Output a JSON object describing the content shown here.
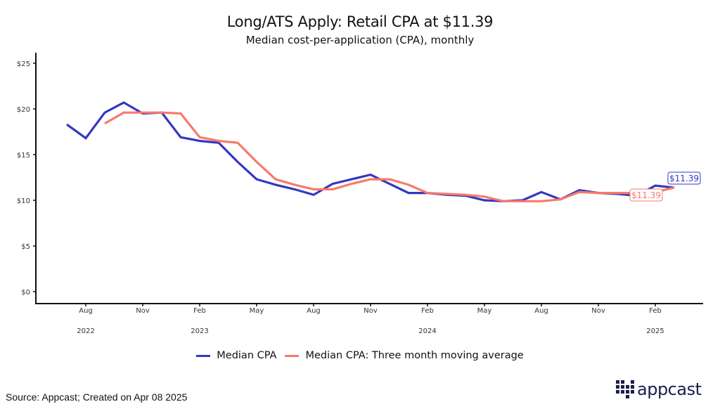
{
  "header": {
    "title": "Long/ATS Apply: Retail CPA at $11.39",
    "subtitle": "Median cost-per-application (CPA), monthly"
  },
  "footer": {
    "source": "Source: Appcast; Created on Apr 08 2025",
    "logo_text": "appcast"
  },
  "colors": {
    "median": "#3339c0",
    "moving_average": "#f77a6b",
    "axis": "#111111"
  },
  "chart_data": {
    "type": "line",
    "title": "Long/ATS Apply: Retail CPA at $11.39",
    "subtitle": "Median cost-per-application (CPA), monthly",
    "xlabel": "",
    "ylabel": "",
    "ylim": [
      0,
      25
    ],
    "y_ticks": [
      0,
      5,
      10,
      15,
      20,
      25
    ],
    "y_tick_labels": [
      "$0",
      "$5",
      "$10",
      "$15",
      "$20",
      "$25"
    ],
    "x": [
      "2022-07",
      "2022-08",
      "2022-09",
      "2022-10",
      "2022-11",
      "2022-12",
      "2023-01",
      "2023-02",
      "2023-03",
      "2023-04",
      "2023-05",
      "2023-06",
      "2023-07",
      "2023-08",
      "2023-09",
      "2023-10",
      "2023-11",
      "2023-12",
      "2024-01",
      "2024-02",
      "2024-03",
      "2024-04",
      "2024-05",
      "2024-06",
      "2024-07",
      "2024-08",
      "2024-09",
      "2024-10",
      "2024-11",
      "2024-12",
      "2025-01",
      "2025-02",
      "2025-03"
    ],
    "x_ticks": [
      {
        "index": 1,
        "label": "Aug",
        "year": "2022"
      },
      {
        "index": 4,
        "label": "Nov",
        "year": ""
      },
      {
        "index": 7,
        "label": "Feb",
        "year": "2023"
      },
      {
        "index": 10,
        "label": "May",
        "year": ""
      },
      {
        "index": 13,
        "label": "Aug",
        "year": ""
      },
      {
        "index": 16,
        "label": "Nov",
        "year": ""
      },
      {
        "index": 19,
        "label": "Feb",
        "year": "2024"
      },
      {
        "index": 22,
        "label": "May",
        "year": ""
      },
      {
        "index": 25,
        "label": "Aug",
        "year": ""
      },
      {
        "index": 28,
        "label": "Nov",
        "year": ""
      },
      {
        "index": 31,
        "label": "Feb",
        "year": "2025"
      }
    ],
    "series": [
      {
        "name": "Median CPA",
        "color": "#3339c0",
        "values": [
          18.3,
          16.8,
          19.6,
          20.7,
          19.5,
          19.6,
          16.9,
          16.5,
          16.3,
          14.2,
          12.3,
          11.7,
          11.2,
          10.6,
          11.8,
          12.3,
          12.8,
          11.8,
          10.8,
          10.8,
          10.6,
          10.5,
          10.0,
          9.9,
          10.0,
          10.9,
          10.1,
          11.1,
          10.8,
          10.7,
          10.5,
          11.6,
          11.39
        ]
      },
      {
        "name": "Median CPA: Three month moving average",
        "color": "#f77a6b",
        "values": [
          null,
          null,
          18.4,
          19.6,
          19.6,
          19.6,
          19.5,
          16.9,
          16.5,
          16.3,
          14.2,
          12.3,
          11.7,
          11.2,
          11.2,
          11.8,
          12.3,
          12.3,
          11.7,
          10.8,
          10.7,
          10.6,
          10.4,
          9.9,
          9.9,
          9.9,
          10.1,
          10.9,
          10.8,
          10.8,
          10.8,
          10.9,
          11.39
        ]
      }
    ],
    "annotations": [
      {
        "series": "Median CPA",
        "text": "$11.39"
      },
      {
        "series": "Median CPA: Three month moving average",
        "text": "$11.39"
      }
    ],
    "legend": "bottom",
    "grid": false
  }
}
